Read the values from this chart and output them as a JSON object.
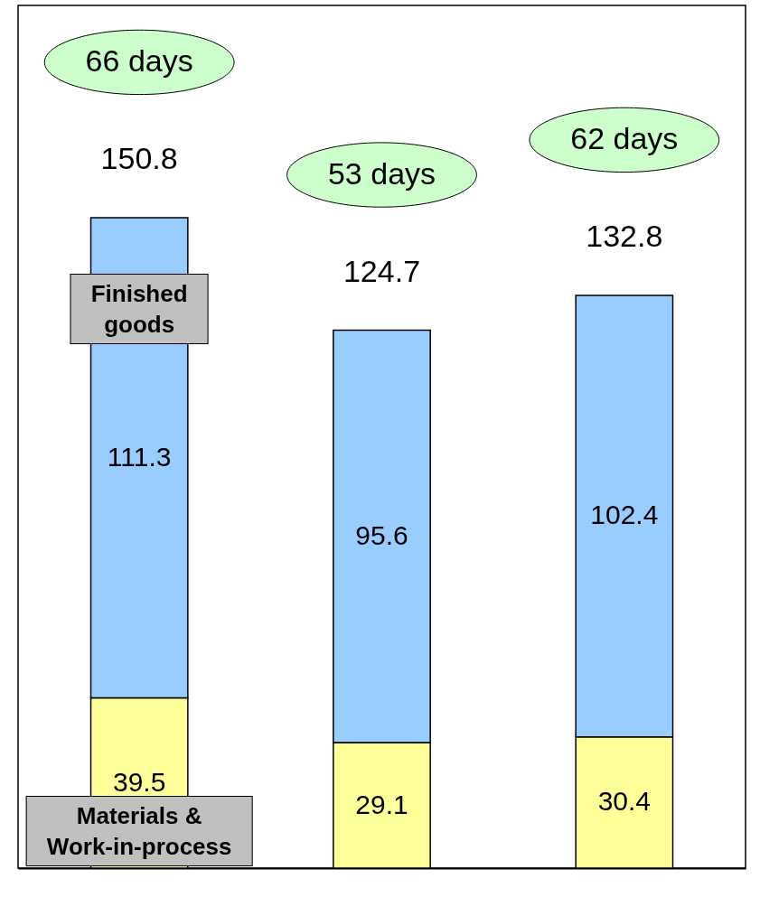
{
  "chart_data": {
    "type": "bar",
    "stacked": true,
    "categories": [
      null,
      null,
      null
    ],
    "series": [
      {
        "name": "Materials & Work-in-process",
        "color": "#ffff99",
        "values": [
          39.5,
          29.1,
          30.4
        ]
      },
      {
        "name": "Finished goods",
        "color": "#99ccff",
        "values": [
          111.3,
          95.6,
          102.4
        ]
      }
    ],
    "totals": [
      "150.8",
      "124.7",
      "132.8"
    ],
    "annotations": [
      "66 days",
      "53 days",
      "62 days"
    ],
    "data_labels": true,
    "grid": false,
    "tick_labels": false,
    "ylim": [
      0,
      200
    ]
  }
}
